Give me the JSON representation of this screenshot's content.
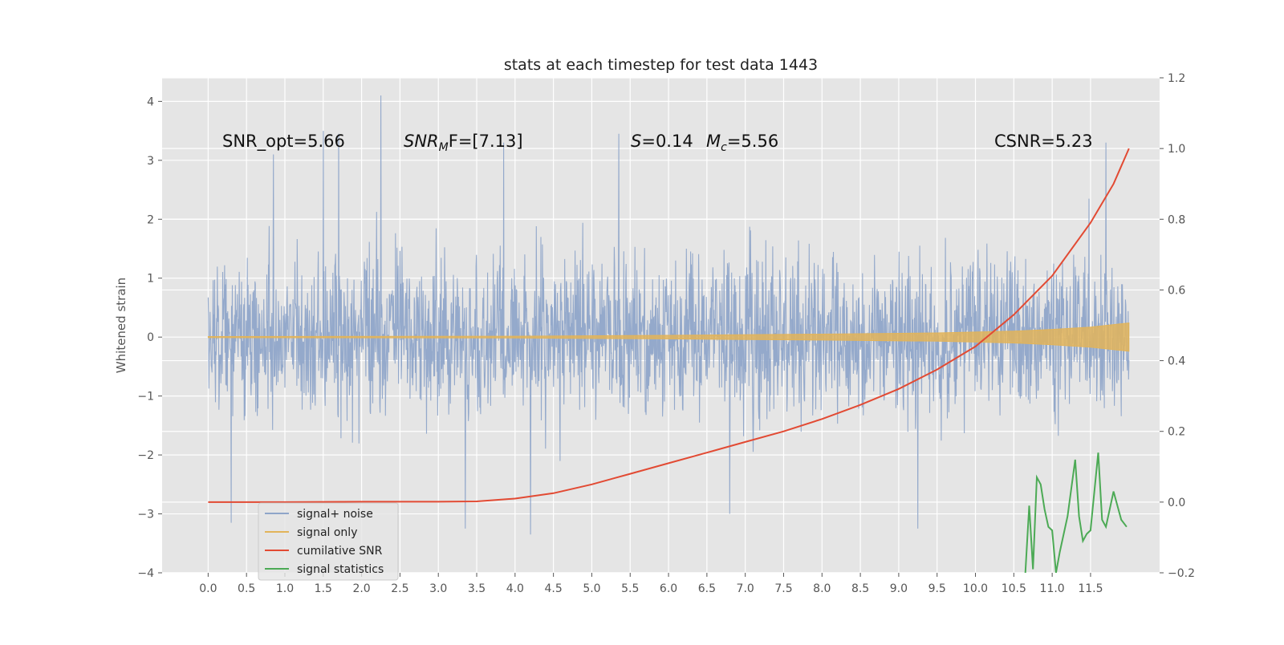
{
  "chart_data": {
    "type": "line",
    "title": "stats at each timestep for test data 1443",
    "xlabel": "",
    "ylabel": "Whitened strain",
    "xlim": [
      -0.6,
      12.4
    ],
    "ylim": [
      -4,
      4.4
    ],
    "y2lim": [
      -0.2,
      1.2
    ],
    "x_ticks": [
      "0.0",
      "0.5",
      "1.0",
      "1.5",
      "2.0",
      "2.5",
      "3.0",
      "3.5",
      "4.0",
      "4.5",
      "5.0",
      "5.5",
      "6.0",
      "6.5",
      "7.0",
      "7.5",
      "8.0",
      "8.5",
      "9.0",
      "9.5",
      "10.0",
      "10.5",
      "11.0",
      "11.5"
    ],
    "y_ticks": [
      "4",
      "3",
      "2",
      "1",
      "0",
      "−1",
      "−2",
      "−3",
      "−4"
    ],
    "y2_ticks": [
      "1.2",
      "1.0",
      "0.8",
      "0.6",
      "0.4",
      "0.2",
      "0.0",
      "−0.2"
    ],
    "annotations": {
      "snr_opt": "SNR_opt=5.66",
      "snr_mf_base": "SNR",
      "snr_mf_sub": "M",
      "snr_mf_rest": "F=[7.13]",
      "s_label": "S",
      "s_value": "=0.14",
      "mc_base": "M",
      "mc_sub": "c",
      "mc_value": "=5.56",
      "csnr": "CSNR=5.23"
    },
    "legend": {
      "position": "lower-left",
      "entries": [
        "signal+ noise",
        "signal only",
        "cumilative SNR",
        "signal statistics"
      ]
    },
    "colors": {
      "noise": "#8fa5c9",
      "signal": "#e2b45a",
      "snr": "#e24a33",
      "stats": "#4caa55",
      "background": "#e5e5e5",
      "grid": "#ffffff"
    },
    "series": [
      {
        "name": "signal+ noise",
        "axis": "left",
        "description_range": [
          -3.35,
          4.1
        ],
        "typical_band": [
          -2.0,
          2.0
        ],
        "x_range": [
          0.0,
          12.0
        ],
        "spikes": [
          {
            "x": 0.85,
            "y": 3.1
          },
          {
            "x": 1.5,
            "y": 3.5
          },
          {
            "x": 1.7,
            "y": 3.45
          },
          {
            "x": 2.25,
            "y": 4.1
          },
          {
            "x": 5.35,
            "y": 3.45
          },
          {
            "x": 3.85,
            "y": 3.3
          },
          {
            "x": 11.7,
            "y": 3.3
          },
          {
            "x": 0.3,
            "y": -3.15
          },
          {
            "x": 4.2,
            "y": -3.35
          },
          {
            "x": 3.35,
            "y": -3.25
          },
          {
            "x": 6.8,
            "y": -3.0
          },
          {
            "x": 9.25,
            "y": -3.25
          }
        ]
      },
      {
        "name": "signal only",
        "axis": "left",
        "envelope": [
          {
            "x": 0.0,
            "amp": 0.01
          },
          {
            "x": 4.0,
            "amp": 0.015
          },
          {
            "x": 6.0,
            "amp": 0.03
          },
          {
            "x": 8.0,
            "amp": 0.05
          },
          {
            "x": 9.5,
            "amp": 0.07
          },
          {
            "x": 10.5,
            "amp": 0.1
          },
          {
            "x": 11.0,
            "amp": 0.13
          },
          {
            "x": 11.5,
            "amp": 0.17
          },
          {
            "x": 12.0,
            "amp": 0.24
          }
        ]
      },
      {
        "name": "cumilative SNR",
        "axis": "right",
        "x": [
          0.0,
          1.0,
          2.0,
          3.0,
          3.5,
          4.0,
          4.5,
          5.0,
          5.5,
          6.0,
          6.5,
          7.0,
          7.5,
          8.0,
          8.5,
          9.0,
          9.5,
          10.0,
          10.5,
          11.0,
          11.5,
          11.8,
          12.0
        ],
        "values": [
          0.0,
          0.0,
          0.001,
          0.001,
          0.002,
          0.01,
          0.025,
          0.05,
          0.08,
          0.11,
          0.14,
          0.17,
          0.2,
          0.235,
          0.275,
          0.32,
          0.375,
          0.44,
          0.53,
          0.64,
          0.79,
          0.9,
          1.0
        ]
      },
      {
        "name": "signal statistics",
        "axis": "right",
        "x": [
          10.65,
          10.7,
          10.75,
          10.8,
          10.85,
          10.9,
          10.95,
          11.0,
          11.05,
          11.1,
          11.2,
          11.3,
          11.35,
          11.4,
          11.45,
          11.5,
          11.6,
          11.65,
          11.7,
          11.8,
          11.9,
          11.97
        ],
        "values": [
          -0.2,
          -0.01,
          -0.19,
          0.07,
          0.05,
          -0.02,
          -0.07,
          -0.08,
          -0.2,
          -0.14,
          -0.04,
          0.12,
          -0.04,
          -0.11,
          -0.09,
          -0.08,
          0.14,
          -0.05,
          -0.07,
          0.03,
          -0.05,
          -0.07
        ]
      }
    ]
  }
}
